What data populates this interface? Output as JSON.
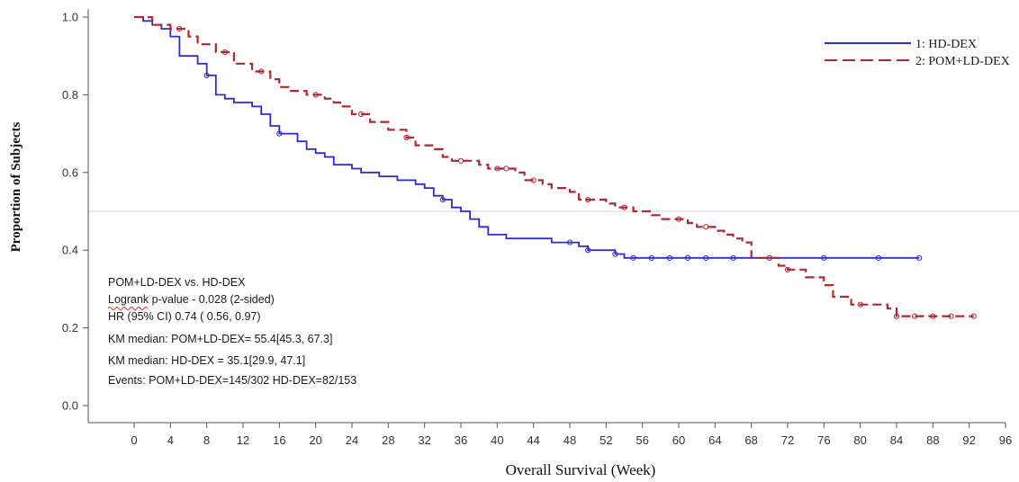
{
  "chart_data": {
    "type": "line",
    "xlabel": "Overall Survival (Week)",
    "ylabel": "Proportion of Subjects",
    "xlim": [
      0,
      96
    ],
    "ylim": [
      0,
      1
    ],
    "x_ticks": [
      0,
      4,
      8,
      12,
      16,
      20,
      24,
      28,
      32,
      36,
      40,
      44,
      48,
      52,
      56,
      60,
      64,
      68,
      72,
      76,
      80,
      84,
      88,
      92,
      96
    ],
    "y_ticks": [
      "0.0",
      "0.2",
      "0.4",
      "0.6",
      "0.8",
      "1.0"
    ],
    "reference_line_y": 0.5,
    "legend_position": "top-right",
    "colors": {
      "hd_dex": "#2b2bd8",
      "pom": "#b22730",
      "reference": "#d0d0d0",
      "axis": "#555555"
    },
    "series": [
      {
        "name": "1: HD-DEX",
        "style": "solid",
        "points": [
          [
            0,
            1.0
          ],
          [
            1,
            0.99
          ],
          [
            2,
            0.98
          ],
          [
            3,
            0.97
          ],
          [
            4,
            0.95
          ],
          [
            5,
            0.9
          ],
          [
            7,
            0.88
          ],
          [
            8,
            0.85
          ],
          [
            9,
            0.8
          ],
          [
            10,
            0.79
          ],
          [
            11,
            0.78
          ],
          [
            13,
            0.77
          ],
          [
            14,
            0.75
          ],
          [
            15,
            0.72
          ],
          [
            16,
            0.7
          ],
          [
            18,
            0.68
          ],
          [
            19,
            0.66
          ],
          [
            20,
            0.65
          ],
          [
            21,
            0.64
          ],
          [
            22,
            0.62
          ],
          [
            24,
            0.61
          ],
          [
            25,
            0.6
          ],
          [
            27,
            0.59
          ],
          [
            29,
            0.58
          ],
          [
            31,
            0.57
          ],
          [
            32,
            0.56
          ],
          [
            33,
            0.54
          ],
          [
            34,
            0.53
          ],
          [
            35,
            0.51
          ],
          [
            36,
            0.5
          ],
          [
            37,
            0.48
          ],
          [
            38,
            0.46
          ],
          [
            39,
            0.44
          ],
          [
            41,
            0.43
          ],
          [
            46,
            0.42
          ],
          [
            49,
            0.41
          ],
          [
            50,
            0.4
          ],
          [
            53,
            0.39
          ],
          [
            54,
            0.38
          ],
          [
            86.5,
            0.38
          ]
        ],
        "censored_x": [
          8,
          16,
          34,
          48,
          50,
          53,
          55,
          57,
          59,
          61,
          63,
          66,
          70,
          76,
          82,
          86.5
        ]
      },
      {
        "name": "2: POM+LD-DEX",
        "style": "dashed",
        "points": [
          [
            0,
            1.0
          ],
          [
            2,
            0.98
          ],
          [
            4,
            0.97
          ],
          [
            6,
            0.95
          ],
          [
            7,
            0.93
          ],
          [
            9,
            0.91
          ],
          [
            11,
            0.88
          ],
          [
            13,
            0.86
          ],
          [
            15,
            0.84
          ],
          [
            16,
            0.82
          ],
          [
            17,
            0.81
          ],
          [
            19,
            0.8
          ],
          [
            21,
            0.79
          ],
          [
            22,
            0.78
          ],
          [
            23,
            0.77
          ],
          [
            24,
            0.75
          ],
          [
            26,
            0.73
          ],
          [
            28,
            0.71
          ],
          [
            30,
            0.69
          ],
          [
            31,
            0.67
          ],
          [
            33,
            0.66
          ],
          [
            34,
            0.64
          ],
          [
            35,
            0.63
          ],
          [
            38,
            0.62
          ],
          [
            39,
            0.61
          ],
          [
            42,
            0.6
          ],
          [
            43,
            0.58
          ],
          [
            45,
            0.57
          ],
          [
            46,
            0.56
          ],
          [
            48,
            0.55
          ],
          [
            49,
            0.53
          ],
          [
            52,
            0.52
          ],
          [
            53,
            0.51
          ],
          [
            55,
            0.5
          ],
          [
            57,
            0.49
          ],
          [
            58,
            0.48
          ],
          [
            61,
            0.47
          ],
          [
            62,
            0.46
          ],
          [
            64,
            0.45
          ],
          [
            65,
            0.44
          ],
          [
            66,
            0.43
          ],
          [
            67,
            0.42
          ],
          [
            68,
            0.38
          ],
          [
            71,
            0.36
          ],
          [
            72,
            0.35
          ],
          [
            74,
            0.33
          ],
          [
            76,
            0.31
          ],
          [
            77,
            0.28
          ],
          [
            79,
            0.26
          ],
          [
            83,
            0.25
          ],
          [
            84,
            0.23
          ],
          [
            92.5,
            0.23
          ]
        ],
        "censored_x": [
          5,
          10,
          14,
          20,
          25,
          30,
          36,
          40,
          41,
          44,
          50,
          54,
          60,
          63,
          70,
          72,
          80,
          84,
          86,
          88,
          90,
          92.5
        ]
      }
    ],
    "annotations": [
      "POM+LD-DEX vs. HD-DEX",
      "Logrank p-value - 0.028 (2-sided)",
      "HR (95% CI)  0.74 ( 0.56,  0.97)",
      "KM median: POM+LD-DEX=  55.4[45.3, 67.3]",
      "KM median: HD-DEX   =   35.1[29.9, 47.1]",
      "Events: POM+LD-DEX=145/302 HD-DEX=82/153"
    ]
  }
}
